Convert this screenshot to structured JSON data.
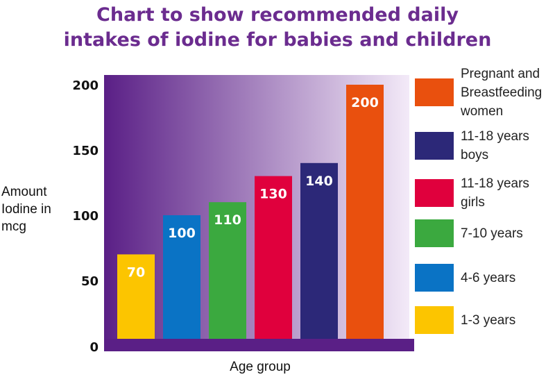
{
  "title_lines": [
    "Chart to show recommended daily",
    "intakes of iodine for babies and children"
  ],
  "ylabel_lines": [
    "Amount",
    "Iodine in",
    "mcg"
  ],
  "xlabel": "Age group",
  "colors": {
    "plot_dark": "#5a1f86",
    "plot_light": "#f3eaf8",
    "axis_bar": "#5a1f86"
  },
  "chart_data": {
    "type": "bar",
    "title": "Chart to show recommended daily intakes of iodine for babies and children",
    "xlabel": "Age group",
    "ylabel": "Amount Iodine in mcg",
    "ylim": [
      0,
      200
    ],
    "yticks": [
      0,
      50,
      100,
      150,
      200
    ],
    "grid": false,
    "legend": "right",
    "categories": [
      "1-3 years",
      "4-6 years",
      "7-10 years",
      "11-18 years girls",
      "11-18 years boys",
      "Pregnant and Breastfeeding women"
    ],
    "values": [
      70,
      100,
      110,
      130,
      140,
      200
    ],
    "value_labels": [
      "70",
      "100",
      "110",
      "130",
      "140",
      "200"
    ],
    "bar_colors": [
      "#fcc500",
      "#0a73c5",
      "#3ba93f",
      "#e0003d",
      "#2c2878",
      "#e9500e"
    ]
  },
  "legend": {
    "items": [
      {
        "lines": [
          "Pregnant and",
          "Breastfeeding",
          "women"
        ],
        "color": "#e9500e"
      },
      {
        "lines": [
          "11-18 years",
          "boys"
        ],
        "color": "#2c2878"
      },
      {
        "lines": [
          "11-18 years",
          "girls"
        ],
        "color": "#e0003d"
      },
      {
        "lines": [
          "7-10 years"
        ],
        "color": "#3ba93f"
      },
      {
        "lines": [
          "4-6 years"
        ],
        "color": "#0a73c5"
      },
      {
        "lines": [
          "1-3 years"
        ],
        "color": "#fcc500"
      }
    ]
  }
}
